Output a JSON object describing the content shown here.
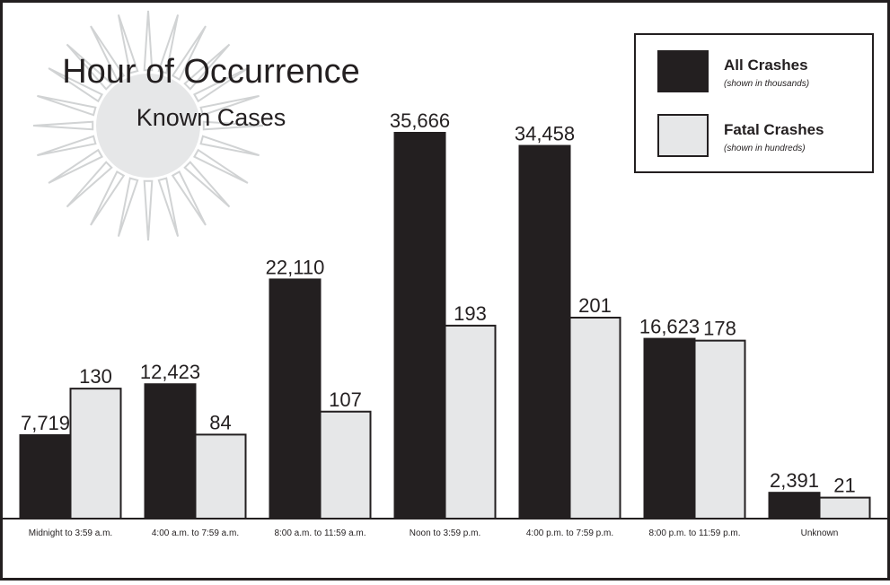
{
  "chart_data": {
    "type": "bar",
    "title": "Hour of Occurrence",
    "subtitle": "Known Cases",
    "categories": [
      "Midnight to 3:59 a.m.",
      "4:00 a.m. to 7:59 a.m.",
      "8:00 a.m. to 11:59 a.m.",
      "Noon to 3:59 p.m.",
      "4:00 p.m. to 7:59 p.m.",
      "8:00 p.m. to 11:59 p.m.",
      "Unknown"
    ],
    "series": [
      {
        "name": "All Crashes",
        "note": "(shown in thousands)",
        "color": "#231f20",
        "values": [
          7719,
          12423,
          22110,
          35666,
          34458,
          16623,
          2391
        ],
        "value_labels": [
          "7,719",
          "12,423",
          "22,110",
          "35,666",
          "34,458",
          "16,623",
          "2,391"
        ]
      },
      {
        "name": "Fatal Crashes",
        "note": "(shown in hundreds)",
        "color": "#e6e7e8",
        "axis": "y2",
        "values": [
          130,
          84,
          107,
          193,
          201,
          178,
          21
        ]
      }
    ]
  }
}
